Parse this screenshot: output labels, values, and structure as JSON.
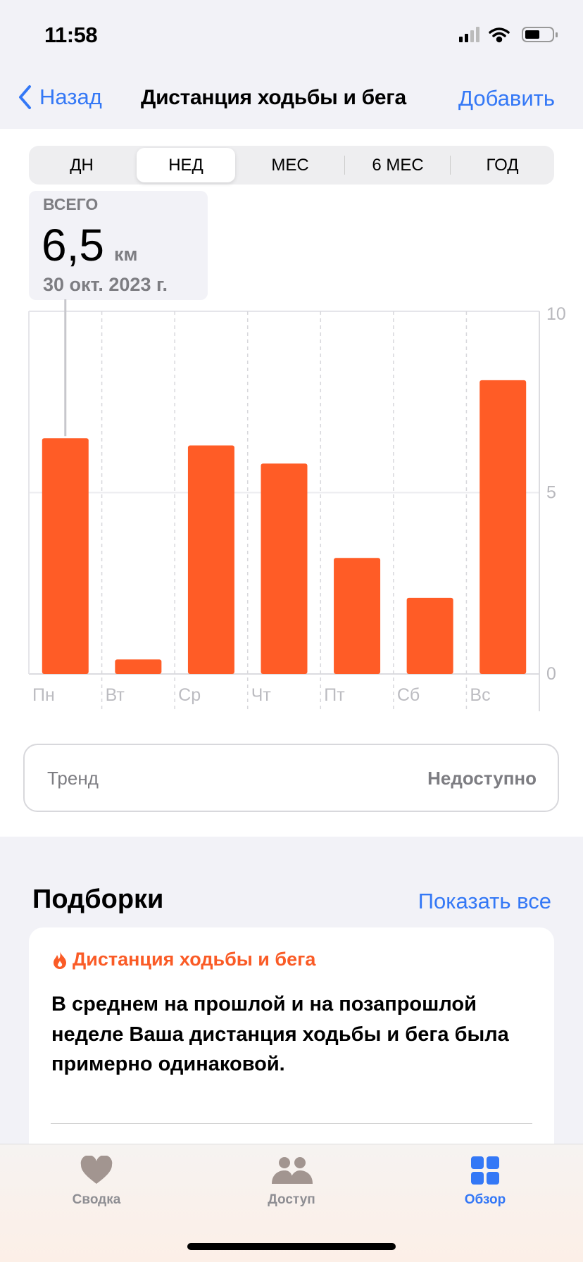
{
  "status": {
    "time": "11:58"
  },
  "nav": {
    "back": "Назад",
    "title": "Дистанция ходьбы и бега",
    "add": "Добавить"
  },
  "segments": [
    "ДН",
    "НЕД",
    "МЕС",
    "6 МЕС",
    "ГОД"
  ],
  "selected_segment": "НЕД",
  "summary": {
    "label": "ВСЕГО",
    "value": "6,5",
    "unit": "км",
    "date": "30 окт. 2023 г."
  },
  "chart_data": {
    "type": "bar",
    "categories": [
      "Пн",
      "Вт",
      "Ср",
      "Чт",
      "Пт",
      "Сб",
      "Вс"
    ],
    "values": [
      6.5,
      0.4,
      6.3,
      5.8,
      3.2,
      2.1,
      8.1
    ],
    "ylim": [
      0,
      10
    ],
    "yticks": [
      "0",
      "5",
      "10"
    ],
    "color": "#ff5c26",
    "grid": true,
    "selected_category": "Пн"
  },
  "trend": {
    "label": "Тренд",
    "value": "Недоступно"
  },
  "highlights": {
    "title": "Подборки",
    "show_all": "Показать все",
    "card": {
      "title": "Дистанция ходьбы и бега",
      "icon": "flame-icon",
      "body": "В среднем на прошлой и на позапрошлой неделе Ваша дистанция ходьбы и бега была примерно одинаковой."
    }
  },
  "tabs": [
    {
      "label": "Сводка",
      "icon": "heart-icon"
    },
    {
      "label": "Доступ",
      "icon": "people-icon"
    },
    {
      "label": "Обзор",
      "icon": "grid-icon",
      "active": true
    }
  ],
  "colors": {
    "accent": "#3478f6",
    "orange": "#ff5c26",
    "inactive": "#8e8e93"
  }
}
